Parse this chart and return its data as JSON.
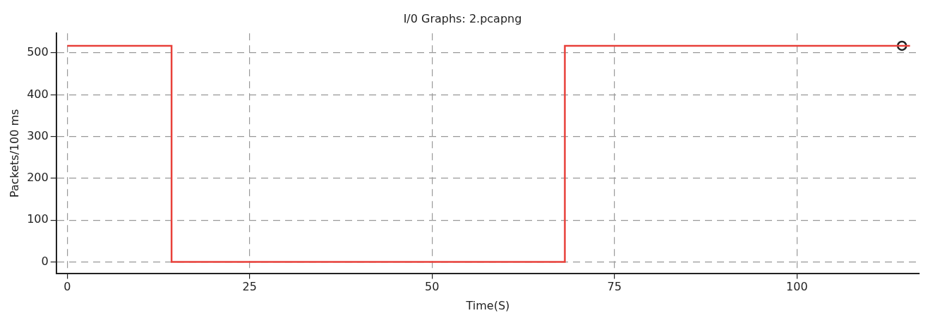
{
  "chart_data": {
    "type": "step",
    "title": "I/0 Graphs: 2.pcapng",
    "xlabel": "Time(S)",
    "ylabel": "Packets/100 ms",
    "series": [
      {
        "color": "#e8403a",
        "x": [
          0,
          14.3,
          68.2,
          115.5
        ],
        "values": [
          517,
          0,
          517,
          517
        ],
        "marker": "none"
      },
      {
        "type": "scatter",
        "color": "#222222",
        "x": [
          114.4
        ],
        "values": [
          517
        ],
        "marker": "circle"
      }
    ],
    "xlim": [
      -1.5,
      116.8
    ],
    "xticks": [
      0,
      25,
      50,
      75,
      100
    ],
    "ylim": [
      -27,
      547
    ],
    "yticks": [
      0,
      100,
      200,
      300,
      400,
      500
    ],
    "grid": true,
    "legend": false
  }
}
